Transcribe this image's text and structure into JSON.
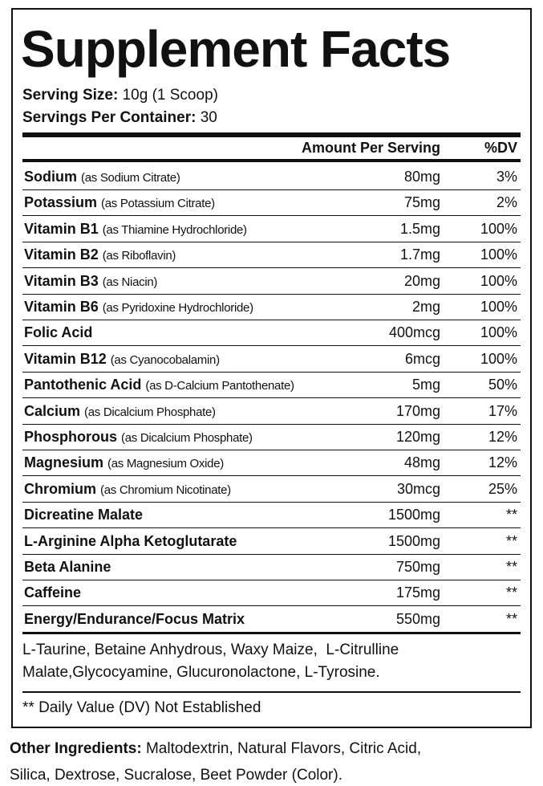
{
  "title": "Supplement Facts",
  "serving_size": {
    "label": "Serving Size:",
    "value": "10g (1 Scoop)"
  },
  "servings_per_container": {
    "label": "Servings Per Container:",
    "value": "30"
  },
  "table": {
    "header": {
      "amount": "Amount Per Serving",
      "dv": "%DV"
    },
    "rows": [
      {
        "name": "Sodium",
        "source": "(as Sodium Citrate)",
        "amount": "80mg",
        "dv": "3%"
      },
      {
        "name": "Potassium",
        "source": "(as Potassium Citrate)",
        "amount": "75mg",
        "dv": "2%"
      },
      {
        "name": "Vitamin B1",
        "source": "(as Thiamine Hydrochloride)",
        "amount": "1.5mg",
        "dv": "100%"
      },
      {
        "name": "Vitamin B2",
        "source": "(as Riboflavin)",
        "amount": "1.7mg",
        "dv": "100%"
      },
      {
        "name": "Vitamin B3",
        "source": "(as Niacin)",
        "amount": "20mg",
        "dv": "100%"
      },
      {
        "name": "Vitamin B6",
        "source": "(as Pyridoxine Hydrochloride)",
        "amount": "2mg",
        "dv": "100%"
      },
      {
        "name": "Folic Acid",
        "amount": "400mcg",
        "dv": "100%"
      },
      {
        "name": "Vitamin B12",
        "source": "(as Cyanocobalamin)",
        "amount": "6mcg",
        "dv": "100%"
      },
      {
        "name": "Pantothenic Acid",
        "source": "(as D-Calcium Pantothenate)",
        "amount": "5mg",
        "dv": "50%"
      },
      {
        "name": "Calcium",
        "source": "(as Dicalcium Phosphate)",
        "amount": "170mg",
        "dv": "17%"
      },
      {
        "name": "Phosphorous",
        "source": "(as Dicalcium Phosphate)",
        "amount": "120mg",
        "dv": "12%"
      },
      {
        "name": "Magnesium",
        "source": "(as Magnesium Oxide)",
        "amount": "48mg",
        "dv": "12%"
      },
      {
        "name": "Chromium",
        "source": "(as Chromium Nicotinate)",
        "amount": "30mcg",
        "dv": "25%"
      },
      {
        "name": "Dicreatine Malate",
        "amount": "1500mg",
        "dv": "**"
      },
      {
        "name": "L-Arginine Alpha Ketoglutarate",
        "amount": "1500mg",
        "dv": "**"
      },
      {
        "name": "Beta Alanine",
        "amount": "750mg",
        "dv": "**"
      },
      {
        "name": "Caffeine",
        "amount": "175mg",
        "dv": "**"
      },
      {
        "name": "Energy/Endurance/Focus Matrix",
        "amount": "550mg",
        "dv": "**"
      }
    ]
  },
  "matrix_ingredients": [
    "L-Taurine, Betaine Anhydrous, Waxy Maize,  L-Citrulline",
    "Malate,Glycocyamine, Glucuronolactone, L-Tyrosine."
  ],
  "footnote": "** Daily Value (DV) Not Established",
  "other_ingredients": {
    "label": "Other Ingredients:",
    "lines": [
      "Maltodextrin, Natural Flavors, Citric Acid,",
      "Silica, Dextrose, Sucralose, Beet Powder (Color)."
    ]
  }
}
